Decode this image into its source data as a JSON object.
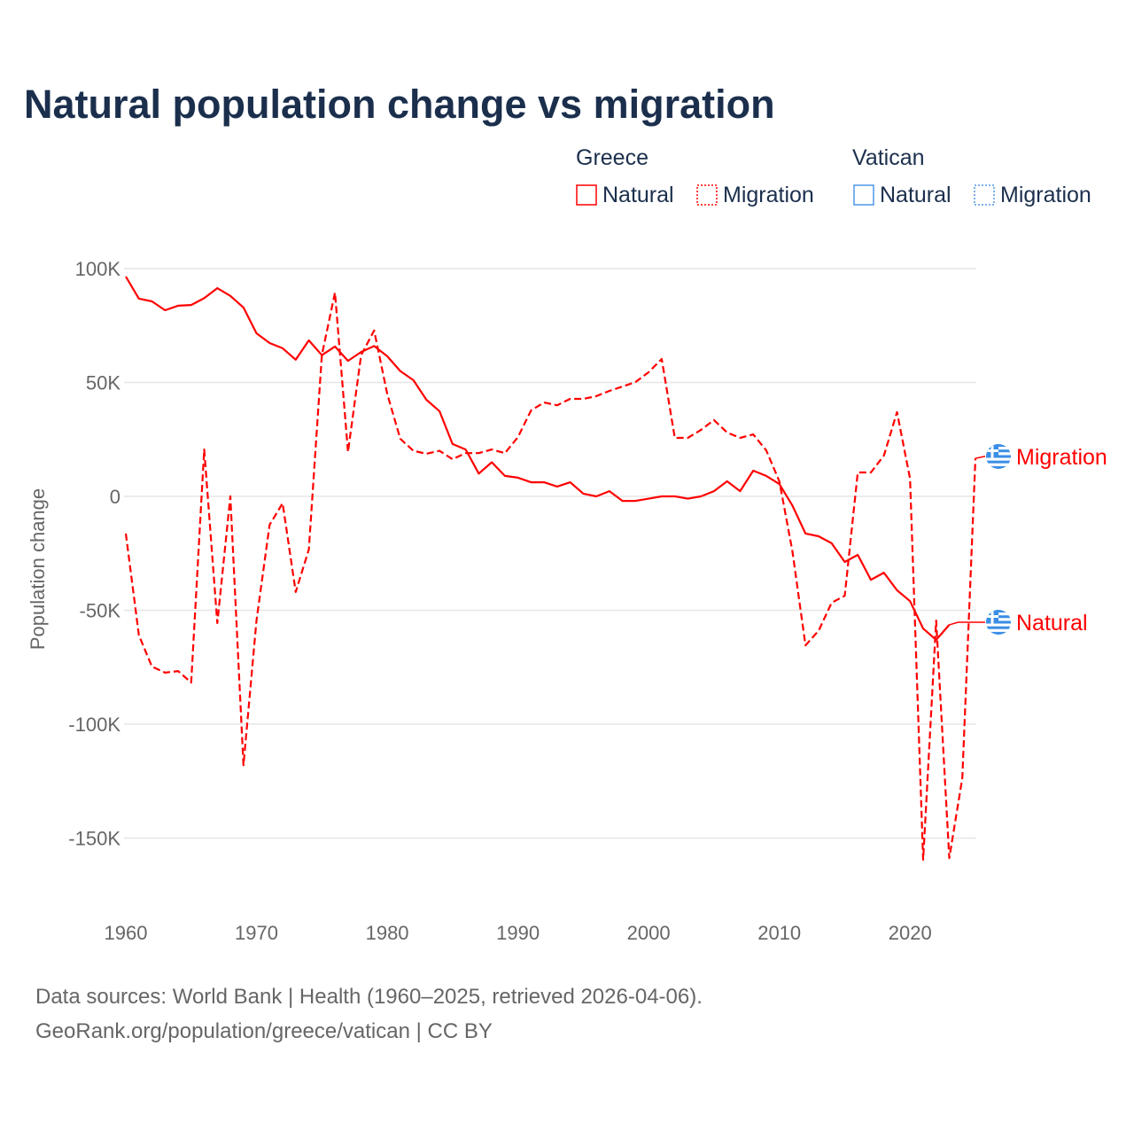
{
  "title": "Natural population change vs migration",
  "legend": {
    "groups": [
      {
        "name": "Greece",
        "color": "#ff0000",
        "items": [
          "Natural",
          "Migration"
        ]
      },
      {
        "name": "Vatican",
        "color": "#4f97e8",
        "items": [
          "Natural",
          "Migration"
        ]
      }
    ]
  },
  "source_lines": [
    "Data sources: World Bank | Health (1960–2025, retrieved 2026-04-06).",
    "GeoRank.org/population/greece/vatican | CC BY"
  ],
  "chart_data": {
    "type": "line",
    "title": "Natural population change vs migration",
    "xlabel": "",
    "ylabel": "Population change",
    "xlim": [
      1960,
      2025
    ],
    "ylim": [
      -160000,
      100000
    ],
    "grid": true,
    "legend_position": "top-right",
    "x_ticks": [
      1960,
      1970,
      1980,
      1990,
      2000,
      2010,
      2020
    ],
    "x_tick_labels": [
      "1960",
      "1970",
      "1980",
      "1990",
      "2000",
      "2010",
      "2020"
    ],
    "y_ticks": [
      100000,
      50000,
      0,
      -50000,
      -100000,
      -150000
    ],
    "y_tick_labels": [
      "100K",
      "50K",
      "0",
      "-50K",
      "-100K",
      "-150K"
    ],
    "series": [
      {
        "name": "Greece Natural",
        "end_label": "Natural",
        "color": "#ff0000",
        "style": "solid",
        "x_start": 1960,
        "values": [
          96.5,
          86.8,
          85.6,
          81.7,
          83.7,
          84,
          87,
          91.4,
          88,
          82.9,
          71.6,
          67.3,
          65,
          60,
          68.5,
          62,
          65.8,
          59.5,
          63.4,
          66,
          61.5,
          55,
          51,
          42.4,
          37.4,
          23,
          20.6,
          10,
          15,
          9,
          8.2,
          6.2,
          6.2,
          4.3,
          6.2,
          1.2,
          0,
          2.3,
          -2,
          -2,
          -1,
          0,
          0,
          -1,
          0,
          2.3,
          6.6,
          2.3,
          11.3,
          9,
          5.4,
          -4,
          -16.3,
          -17.5,
          -20.6,
          -28.8,
          -25.7,
          -36.6,
          -33.5,
          -41.2,
          -46,
          -58,
          -63,
          -56.4
        ],
        "unit": "thousands"
      },
      {
        "name": "Greece Migration",
        "end_label": "Migration",
        "color": "#ff0000",
        "style": "dashed",
        "x_start": 1960,
        "values": [
          -16.3,
          -61,
          -74.7,
          -77.4,
          -76.7,
          -81.7,
          20.6,
          -55.6,
          0,
          -118,
          -54.5,
          -12.5,
          -3,
          -42,
          -23.3,
          62,
          89.5,
          19.5,
          62,
          72.8,
          45,
          25.3,
          20,
          18.7,
          20,
          16.3,
          19,
          19,
          20.6,
          19,
          26,
          37.7,
          41.2,
          40,
          42.8,
          42.8,
          44,
          46.3,
          48.2,
          50.2,
          54.5,
          60.3,
          25.7,
          25.7,
          29.2,
          33.5,
          28,
          25.7,
          27.2,
          20.2,
          6.6,
          -24,
          -65.4,
          -59,
          -46.7,
          -43.6,
          10.5,
          10.5,
          17.9,
          37,
          7.8,
          -159.5,
          -54.5,
          -158.8,
          -123.7,
          16.7
        ],
        "unit": "thousands"
      }
    ]
  }
}
